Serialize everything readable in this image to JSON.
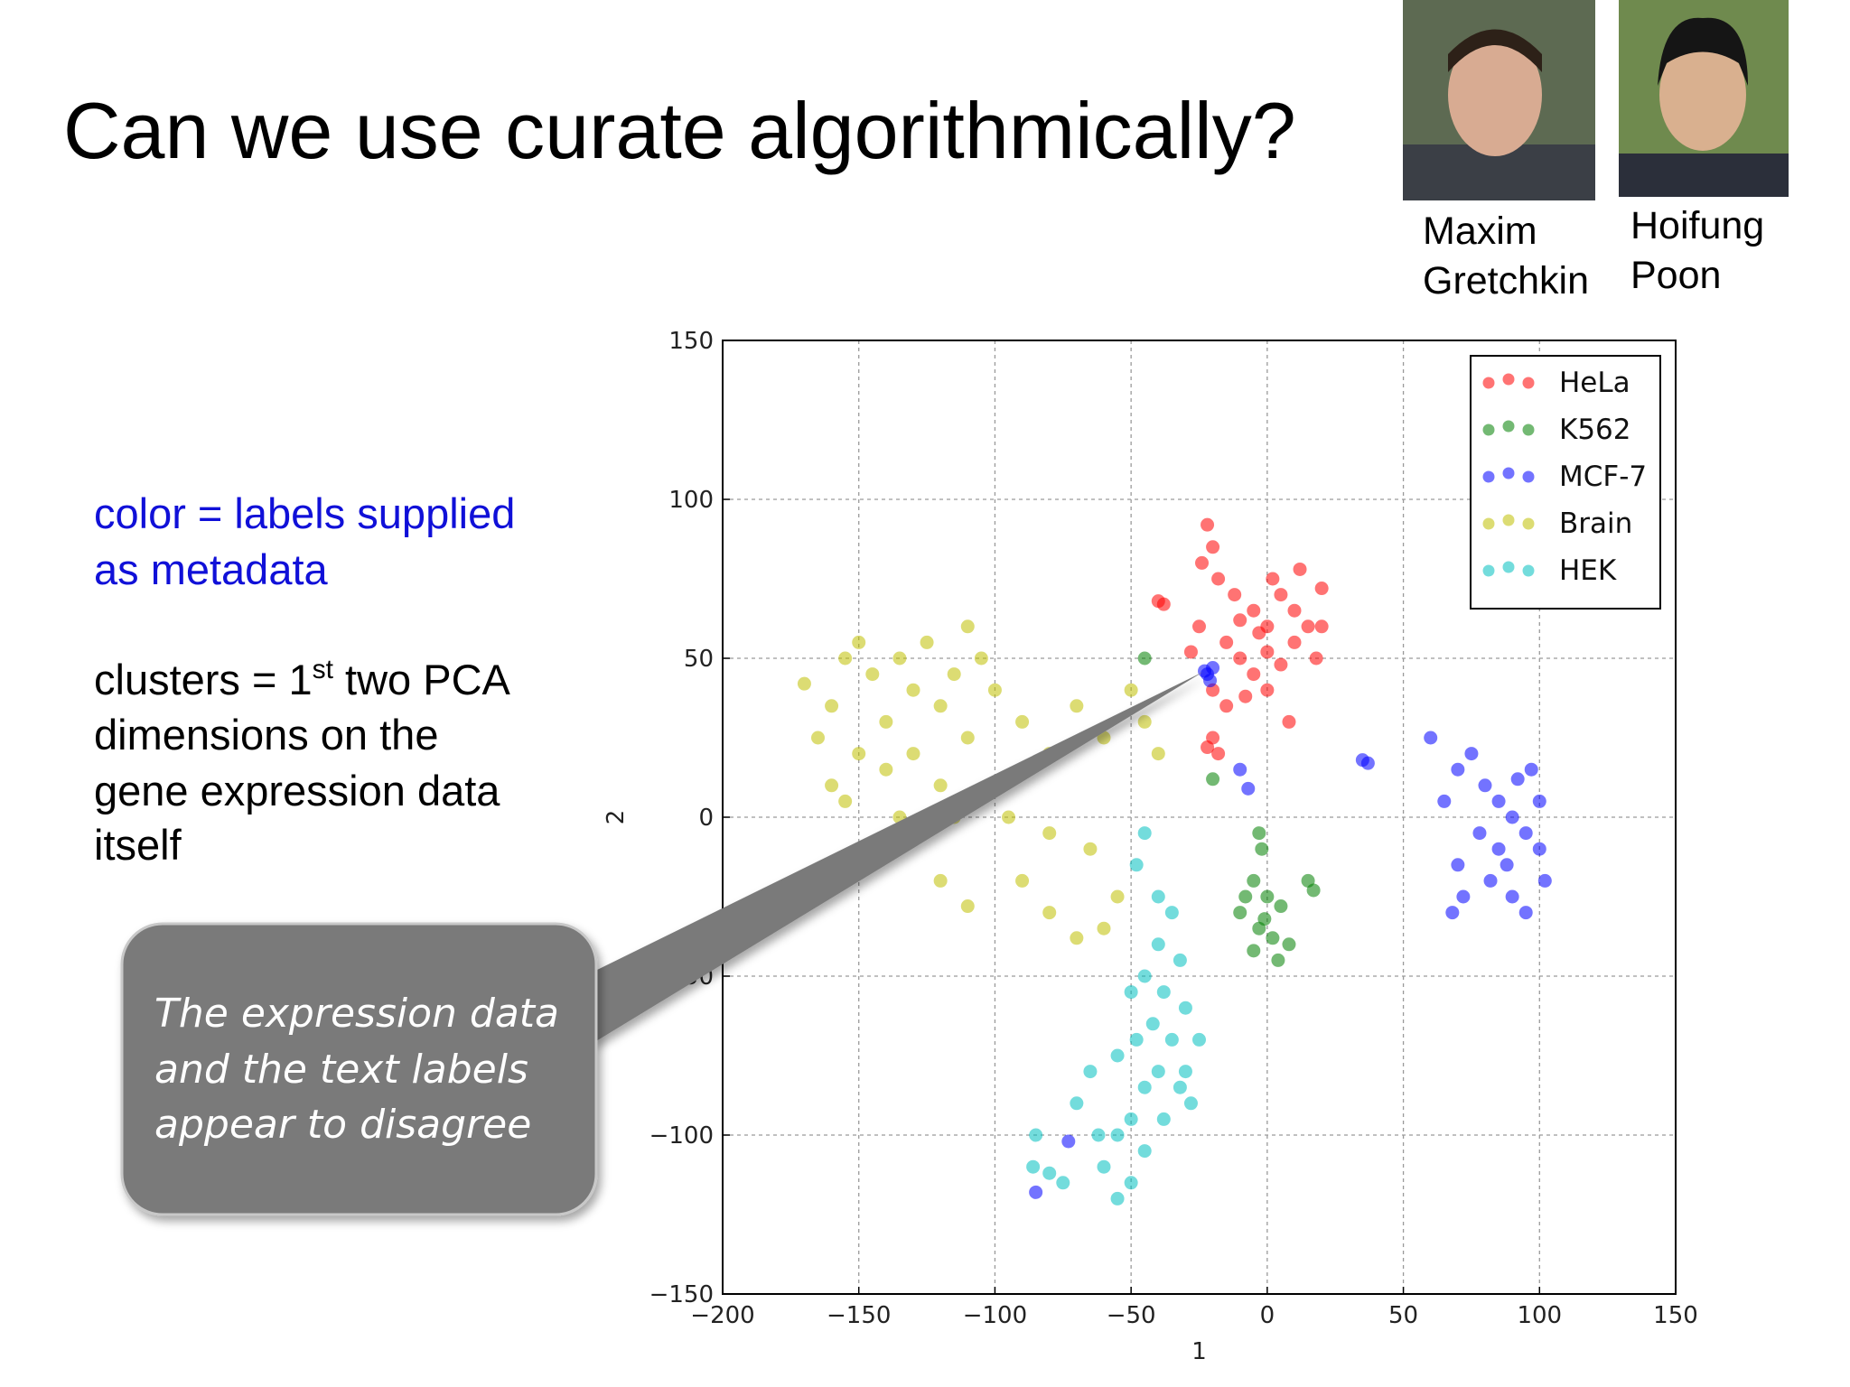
{
  "slide": {
    "title": "Can we use curate algorithmically?",
    "people": [
      {
        "first": "Maxim",
        "last": "Gretchkin"
      },
      {
        "first": "Hoifung",
        "last": "Poon"
      }
    ],
    "color_note": [
      "color = labels supplied",
      "as metadata"
    ],
    "cluster_note": {
      "first_line": {
        "before": "clusters = 1",
        "sup": "st",
        "after": " two PCA"
      },
      "lines": [
        "dimensions on the",
        "gene expression data",
        "itself"
      ]
    },
    "callout": [
      "The expression data",
      "and the text labels",
      "appear to disagree"
    ]
  },
  "chart_data": {
    "type": "scatter",
    "x_label": "1",
    "y_label": "2",
    "xlim": [
      -200,
      150
    ],
    "ylim": [
      -150,
      150
    ],
    "xticks": [
      {
        "value": -200,
        "label": "−200"
      },
      {
        "value": -150,
        "label": "−150"
      },
      {
        "value": -100,
        "label": "−100"
      },
      {
        "value": -50,
        "label": "−50"
      },
      0,
      50,
      100,
      150
    ],
    "yticks": [
      {
        "value": -150,
        "label": "−150"
      },
      {
        "value": -100,
        "label": "−100"
      },
      {
        "value": -50,
        "label": "−50"
      },
      0,
      50,
      100,
      150
    ],
    "grid": true,
    "legend": "upper right",
    "series": [
      {
        "name": "HeLa",
        "color": "#ff0000",
        "x": [
          -22,
          -20,
          -24,
          -18,
          -12,
          -5,
          0,
          5,
          10,
          15,
          20,
          -40,
          -38,
          -15,
          -10,
          -5,
          0,
          5,
          10,
          18,
          -25,
          -28,
          -20,
          -15,
          -8,
          0,
          -20,
          -18,
          -22,
          8,
          -10,
          2,
          12,
          -3,
          20
        ],
        "y": [
          92,
          85,
          80,
          75,
          70,
          65,
          60,
          70,
          65,
          60,
          72,
          68,
          67,
          55,
          50,
          45,
          52,
          48,
          55,
          50,
          60,
          52,
          40,
          35,
          38,
          40,
          25,
          20,
          22,
          30,
          62,
          75,
          78,
          58,
          60
        ]
      },
      {
        "name": "K562",
        "color": "#008000",
        "x": [
          -3,
          -2,
          -5,
          -8,
          0,
          5,
          -10,
          -3,
          2,
          8,
          -5,
          -1,
          15,
          17,
          -20,
          -45,
          4
        ],
        "y": [
          -5,
          -10,
          -20,
          -25,
          -25,
          -28,
          -30,
          -35,
          -38,
          -40,
          -42,
          -32,
          -20,
          -23,
          12,
          50,
          -45
        ]
      },
      {
        "name": "MCF-7",
        "color": "#0000ff",
        "x": [
          -22,
          -20,
          -21,
          -23,
          35,
          37,
          60,
          65,
          70,
          75,
          80,
          85,
          90,
          95,
          100,
          88,
          82,
          90,
          95,
          78,
          85,
          92,
          100,
          70,
          72,
          68,
          -10,
          -7,
          -85,
          -73,
          102,
          97
        ],
        "y": [
          45,
          47,
          43,
          46,
          18,
          17,
          25,
          5,
          15,
          20,
          10,
          5,
          0,
          -5,
          -10,
          -15,
          -20,
          -25,
          -30,
          -5,
          -10,
          12,
          5,
          -15,
          -25,
          -30,
          15,
          9,
          -118,
          -102,
          -20,
          15
        ]
      },
      {
        "name": "Brain",
        "color": "#bfbf00",
        "x": [
          -170,
          -160,
          -155,
          -150,
          -145,
          -140,
          -135,
          -130,
          -125,
          -120,
          -115,
          -110,
          -105,
          -100,
          -165,
          -150,
          -140,
          -130,
          -120,
          -110,
          -100,
          -90,
          -80,
          -70,
          -60,
          -50,
          -45,
          -40,
          -155,
          -135,
          -115,
          -95,
          -120,
          -110,
          -90,
          -80,
          -70,
          -60,
          -55,
          -80,
          -65,
          -160
        ],
        "y": [
          42,
          35,
          50,
          55,
          45,
          30,
          50,
          40,
          55,
          35,
          45,
          60,
          50,
          40,
          25,
          20,
          15,
          20,
          10,
          25,
          10,
          30,
          20,
          35,
          25,
          40,
          30,
          20,
          5,
          0,
          0,
          0,
          -20,
          -28,
          -20,
          -30,
          -38,
          -35,
          -25,
          -5,
          -10,
          10
        ]
      },
      {
        "name": "HEK",
        "color": "#00bfbf",
        "x": [
          -45,
          -48,
          -40,
          -35,
          -32,
          -40,
          -45,
          -50,
          -38,
          -30,
          -42,
          -35,
          -48,
          -55,
          -40,
          -32,
          -45,
          -50,
          -38,
          -28,
          -55,
          -45,
          -60,
          -50,
          -55,
          -65,
          -70,
          -62,
          -85,
          -86,
          -80,
          -75,
          -25,
          -30
        ],
        "y": [
          -5,
          -15,
          -25,
          -30,
          -45,
          -40,
          -50,
          -55,
          -55,
          -60,
          -65,
          -70,
          -70,
          -75,
          -80,
          -85,
          -85,
          -95,
          -95,
          -90,
          -100,
          -105,
          -110,
          -115,
          -120,
          -80,
          -90,
          -100,
          -100,
          -110,
          -112,
          -115,
          -70,
          -80
        ]
      }
    ]
  }
}
